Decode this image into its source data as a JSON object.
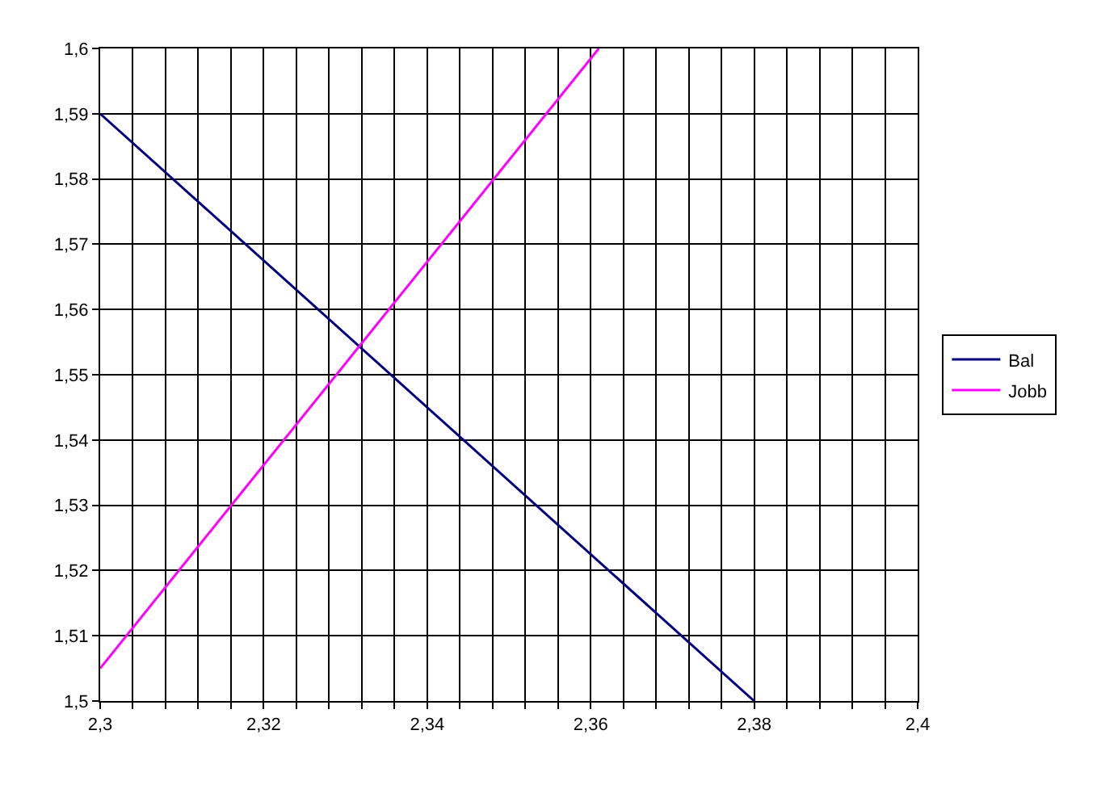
{
  "chart_data": {
    "type": "line",
    "series": [
      {
        "name": "Bal",
        "color": "#000080",
        "x": [
          2.3,
          2.38
        ],
        "values": [
          1.59,
          1.5
        ]
      },
      {
        "name": "Jobb",
        "color": "#ff00ff",
        "x": [
          2.3,
          2.361
        ],
        "values": [
          1.505,
          1.6
        ]
      }
    ],
    "xlim": [
      2.3,
      2.4
    ],
    "xticks": [
      {
        "value": 2.3,
        "label": "2,3"
      },
      {
        "value": 2.304,
        "label": null
      },
      {
        "value": 2.308,
        "label": null
      },
      {
        "value": 2.312,
        "label": null
      },
      {
        "value": 2.316,
        "label": null
      },
      {
        "value": 2.32,
        "label": "2,32"
      },
      {
        "value": 2.324,
        "label": null
      },
      {
        "value": 2.328,
        "label": null
      },
      {
        "value": 2.332,
        "label": null
      },
      {
        "value": 2.336,
        "label": null
      },
      {
        "value": 2.34,
        "label": "2,34"
      },
      {
        "value": 2.344,
        "label": null
      },
      {
        "value": 2.348,
        "label": null
      },
      {
        "value": 2.352,
        "label": null
      },
      {
        "value": 2.356,
        "label": null
      },
      {
        "value": 2.36,
        "label": "2,36"
      },
      {
        "value": 2.364,
        "label": null
      },
      {
        "value": 2.368,
        "label": null
      },
      {
        "value": 2.372,
        "label": null
      },
      {
        "value": 2.376,
        "label": null
      },
      {
        "value": 2.38,
        "label": "2,38"
      },
      {
        "value": 2.384,
        "label": null
      },
      {
        "value": 2.388,
        "label": null
      },
      {
        "value": 2.392,
        "label": null
      },
      {
        "value": 2.396,
        "label": null
      },
      {
        "value": 2.4,
        "label": "2,4"
      }
    ],
    "ylim": [
      1.5,
      1.6
    ],
    "yticks": [
      {
        "value": 1.5,
        "label": "1,5"
      },
      {
        "value": 1.51,
        "label": "1,51"
      },
      {
        "value": 1.52,
        "label": "1,52"
      },
      {
        "value": 1.53,
        "label": "1,53"
      },
      {
        "value": 1.54,
        "label": "1,54"
      },
      {
        "value": 1.55,
        "label": "1,55"
      },
      {
        "value": 1.56,
        "label": "1,56"
      },
      {
        "value": 1.57,
        "label": "1,57"
      },
      {
        "value": 1.58,
        "label": "1,58"
      },
      {
        "value": 1.59,
        "label": "1,59"
      },
      {
        "value": 1.6,
        "label": "1,6"
      }
    ],
    "grid": true,
    "legend": "right",
    "marker": "none",
    "line_style": "solid"
  }
}
